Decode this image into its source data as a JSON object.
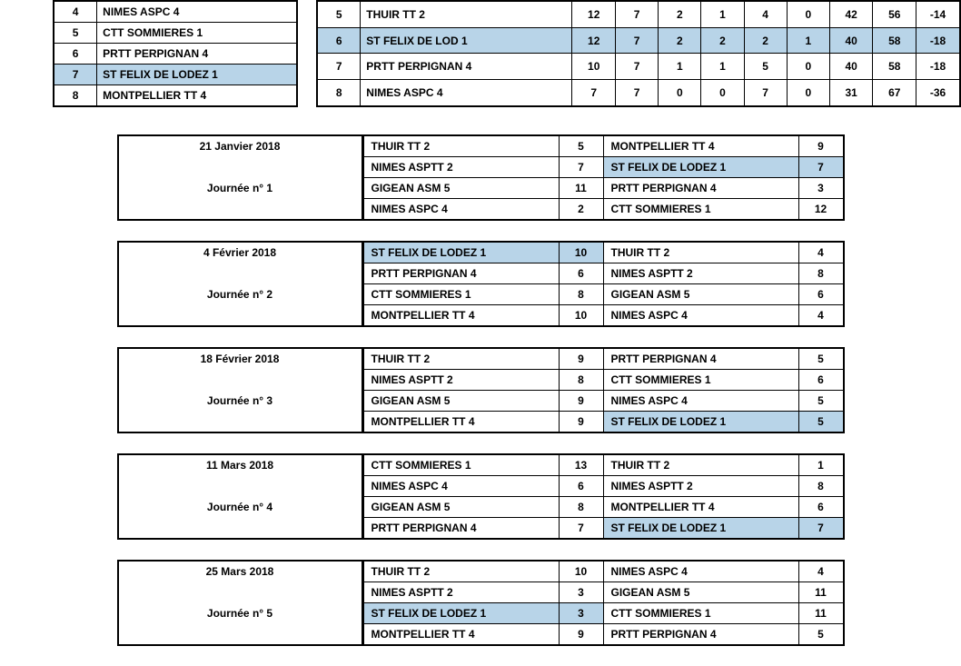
{
  "top_left": {
    "rows": [
      {
        "rank": 4,
        "team": "NIMES ASPC 4",
        "hl": false
      },
      {
        "rank": 5,
        "team": "CTT SOMMIERES 1",
        "hl": false
      },
      {
        "rank": 6,
        "team": "PRTT PERPIGNAN 4",
        "hl": false
      },
      {
        "rank": 7,
        "team": "ST FELIX DE LODEZ 1",
        "hl": true
      },
      {
        "rank": 8,
        "team": "MONTPELLIER TT 4",
        "hl": false
      }
    ]
  },
  "top_right": {
    "rows": [
      {
        "rank": 5,
        "team": "THUIR TT 2",
        "vals": [
          12,
          7,
          2,
          1,
          4,
          0,
          42,
          56,
          -14
        ],
        "hl": false
      },
      {
        "rank": 6,
        "team": "ST FELIX DE LOD 1",
        "vals": [
          12,
          7,
          2,
          2,
          2,
          1,
          40,
          58,
          -18
        ],
        "hl": true
      },
      {
        "rank": 7,
        "team": "PRTT PERPIGNAN 4",
        "vals": [
          10,
          7,
          1,
          1,
          5,
          0,
          40,
          58,
          -18
        ],
        "hl": false
      },
      {
        "rank": 8,
        "team": "NIMES ASPC 4",
        "vals": [
          7,
          7,
          0,
          0,
          7,
          0,
          31,
          67,
          -36
        ],
        "hl": false
      }
    ]
  },
  "days": [
    {
      "date": "21 Janvier 2018",
      "label": "Journée n° 1",
      "matches": [
        {
          "home": "THUIR TT 2",
          "hs": 5,
          "away": "MONTPELLIER TT 4",
          "as": 9,
          "hl_home": false,
          "hl_away": false
        },
        {
          "home": "NIMES ASPTT 2",
          "hs": 7,
          "away": "ST FELIX DE LODEZ 1",
          "as": 7,
          "hl_home": false,
          "hl_away": true
        },
        {
          "home": "GIGEAN ASM 5",
          "hs": 11,
          "away": "PRTT PERPIGNAN 4",
          "as": 3,
          "hl_home": false,
          "hl_away": false
        },
        {
          "home": "NIMES ASPC 4",
          "hs": 2,
          "away": "CTT SOMMIERES 1",
          "as": 12,
          "hl_home": false,
          "hl_away": false
        }
      ]
    },
    {
      "date": "4 Février 2018",
      "label": "Journée n° 2",
      "matches": [
        {
          "home": "ST FELIX DE LODEZ 1",
          "hs": 10,
          "away": "THUIR TT 2",
          "as": 4,
          "hl_home": true,
          "hl_away": false
        },
        {
          "home": "PRTT PERPIGNAN 4",
          "hs": 6,
          "away": "NIMES ASPTT 2",
          "as": 8,
          "hl_home": false,
          "hl_away": false
        },
        {
          "home": "CTT SOMMIERES 1",
          "hs": 8,
          "away": "GIGEAN ASM 5",
          "as": 6,
          "hl_home": false,
          "hl_away": false
        },
        {
          "home": "MONTPELLIER TT 4",
          "hs": 10,
          "away": "NIMES ASPC 4",
          "as": 4,
          "hl_home": false,
          "hl_away": false
        }
      ]
    },
    {
      "date": "18 Février 2018",
      "label": "Journée n° 3",
      "matches": [
        {
          "home": "THUIR TT 2",
          "hs": 9,
          "away": "PRTT PERPIGNAN 4",
          "as": 5,
          "hl_home": false,
          "hl_away": false
        },
        {
          "home": "NIMES ASPTT 2",
          "hs": 8,
          "away": "CTT SOMMIERES 1",
          "as": 6,
          "hl_home": false,
          "hl_away": false
        },
        {
          "home": "GIGEAN ASM 5",
          "hs": 9,
          "away": "NIMES ASPC 4",
          "as": 5,
          "hl_home": false,
          "hl_away": false
        },
        {
          "home": "MONTPELLIER TT 4",
          "hs": 9,
          "away": "ST FELIX DE LODEZ 1",
          "as": 5,
          "hl_home": false,
          "hl_away": true
        }
      ]
    },
    {
      "date": "11 Mars 2018",
      "label": "Journée n° 4",
      "matches": [
        {
          "home": "CTT SOMMIERES 1",
          "hs": 13,
          "away": "THUIR TT 2",
          "as": 1,
          "hl_home": false,
          "hl_away": false
        },
        {
          "home": "NIMES ASPC 4",
          "hs": 6,
          "away": "NIMES ASPTT 2",
          "as": 8,
          "hl_home": false,
          "hl_away": false
        },
        {
          "home": "GIGEAN ASM 5",
          "hs": 8,
          "away": "MONTPELLIER TT 4",
          "as": 6,
          "hl_home": false,
          "hl_away": false
        },
        {
          "home": "PRTT PERPIGNAN 4",
          "hs": 7,
          "away": "ST FELIX DE LODEZ 1",
          "as": 7,
          "hl_home": false,
          "hl_away": true
        }
      ]
    },
    {
      "date": "25 Mars 2018",
      "label": "Journée n° 5",
      "matches": [
        {
          "home": "THUIR TT 2",
          "hs": 10,
          "away": "NIMES ASPC 4",
          "as": 4,
          "hl_home": false,
          "hl_away": false
        },
        {
          "home": "NIMES ASPTT 2",
          "hs": 3,
          "away": "GIGEAN ASM 5",
          "as": 11,
          "hl_home": false,
          "hl_away": false
        },
        {
          "home": "ST FELIX DE LODEZ 1",
          "hs": 3,
          "away": "CTT SOMMIERES 1",
          "as": 11,
          "hl_home": true,
          "hl_away": false
        },
        {
          "home": "MONTPELLIER TT 4",
          "hs": 9,
          "away": "PRTT PERPIGNAN 4",
          "as": 5,
          "hl_home": false,
          "hl_away": false
        }
      ]
    }
  ]
}
